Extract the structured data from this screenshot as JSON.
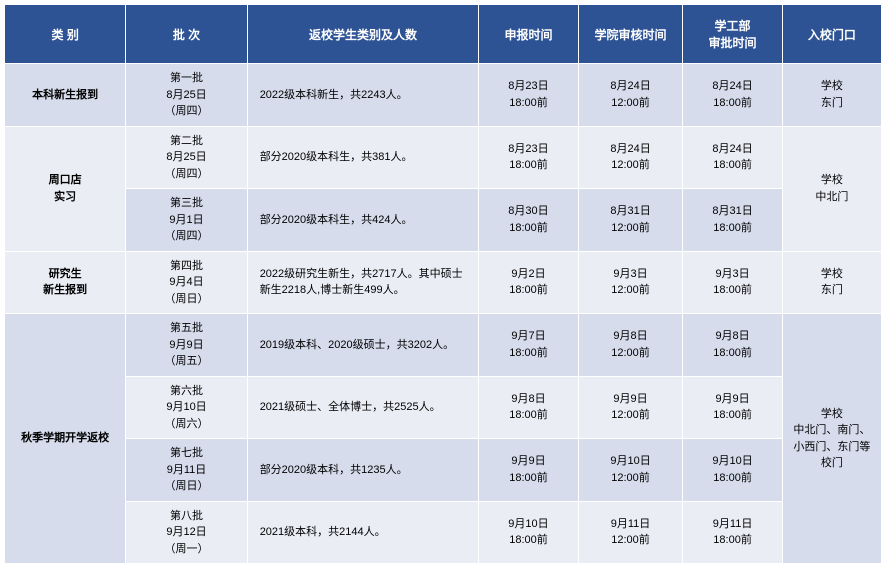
{
  "colors": {
    "header_bg": "#2e5395",
    "header_fg": "#ffffff",
    "row_light": "#d6dcec",
    "row_dark": "#ebedf5",
    "border": "#ffffff",
    "text": "#000000"
  },
  "typography": {
    "header_fontsize": 12,
    "cell_fontsize": 11,
    "font_family": "Microsoft YaHei"
  },
  "headers": {
    "category": "类 别",
    "batch": "批 次",
    "students": "返校学生类别及人数",
    "apply_time": "申报时间",
    "review_time": "学院审核时间",
    "approve_time": "学工部\n审批时间",
    "approve_time_l1": "学工部",
    "approve_time_l2": "审批时间",
    "gate": "入校门口"
  },
  "categories": [
    {
      "name": "本科新生报到",
      "rowspan": 1,
      "gate": "学校\n东门",
      "gate_l1": "学校",
      "gate_l2": "东门",
      "gate_rowspan": 1,
      "rows": [
        {
          "shade": "light",
          "batch_l1": "第一批",
          "batch_l2": "8月25日",
          "batch_l3": "（周四）",
          "students": "2022级本科新生，共2243人。",
          "apply_l1": "8月23日",
          "apply_l2": "18:00前",
          "review_l1": "8月24日",
          "review_l2": "12:00前",
          "approve_l1": "8月24日",
          "approve_l2": "18:00前"
        }
      ]
    },
    {
      "name_l1": "周口店",
      "name_l2": "实习",
      "rowspan": 2,
      "gate_l1": "学校",
      "gate_l2": "中北门",
      "gate_rowspan": 2,
      "rows": [
        {
          "shade": "dark",
          "batch_l1": "第二批",
          "batch_l2": "8月25日",
          "batch_l3": "（周四）",
          "students": "部分2020级本科生，共381人。",
          "apply_l1": "8月23日",
          "apply_l2": "18:00前",
          "review_l1": "8月24日",
          "review_l2": "12:00前",
          "approve_l1": "8月24日",
          "approve_l2": "18:00前"
        },
        {
          "shade": "light",
          "batch_l1": "第三批",
          "batch_l2": "9月1日",
          "batch_l3": "（周四）",
          "students": "部分2020级本科生，共424人。",
          "apply_l1": "8月30日",
          "apply_l2": "18:00前",
          "review_l1": "8月31日",
          "review_l2": "12:00前",
          "approve_l1": "8月31日",
          "approve_l2": "18:00前"
        }
      ]
    },
    {
      "name_l1": "研究生",
      "name_l2": "新生报到",
      "rowspan": 1,
      "gate_l1": "学校",
      "gate_l2": "东门",
      "gate_rowspan": 1,
      "rows": [
        {
          "shade": "dark",
          "batch_l1": "第四批",
          "batch_l2": "9月4日",
          "batch_l3": "（周日）",
          "students": "2022级研究生新生，共2717人。其中硕士新生2218人,博士新生499人。",
          "apply_l1": "9月2日",
          "apply_l2": "18:00前",
          "review_l1": "9月3日",
          "review_l2": "12:00前",
          "approve_l1": "9月3日",
          "approve_l2": "18:00前"
        }
      ]
    },
    {
      "name": "秋季学期开学返校",
      "rowspan": 4,
      "gate_l1": "学校",
      "gate_l2": "中北门、南门、小西门、东门等校门",
      "gate_rowspan": 4,
      "rows": [
        {
          "shade": "light",
          "batch_l1": "第五批",
          "batch_l2": "9月9日",
          "batch_l3": "（周五）",
          "students": "2019级本科、2020级硕士，共3202人。",
          "apply_l1": "9月7日",
          "apply_l2": "18:00前",
          "review_l1": "9月8日",
          "review_l2": "12:00前",
          "approve_l1": "9月8日",
          "approve_l2": "18:00前"
        },
        {
          "shade": "dark",
          "batch_l1": "第六批",
          "batch_l2": "9月10日",
          "batch_l3": "（周六）",
          "students": "2021级硕士、全体博士，共2525人。",
          "apply_l1": "9月8日",
          "apply_l2": "18:00前",
          "review_l1": "9月9日",
          "review_l2": "12:00前",
          "approve_l1": "9月9日",
          "approve_l2": "18:00前"
        },
        {
          "shade": "light",
          "batch_l1": "第七批",
          "batch_l2": "9月11日",
          "batch_l3": "（周日）",
          "students": "部分2020级本科，共1235人。",
          "apply_l1": "9月9日",
          "apply_l2": "18:00前",
          "review_l1": "9月10日",
          "review_l2": "12:00前",
          "approve_l1": "9月10日",
          "approve_l2": "18:00前"
        },
        {
          "shade": "dark",
          "batch_l1": "第八批",
          "batch_l2": "9月12日",
          "batch_l3": "（周一）",
          "students": "2021级本科，共2144人。",
          "apply_l1": "9月10日",
          "apply_l2": "18:00前",
          "review_l1": "9月11日",
          "review_l2": "12:00前",
          "approve_l1": "9月11日",
          "approve_l2": "18:00前"
        }
      ]
    }
  ]
}
